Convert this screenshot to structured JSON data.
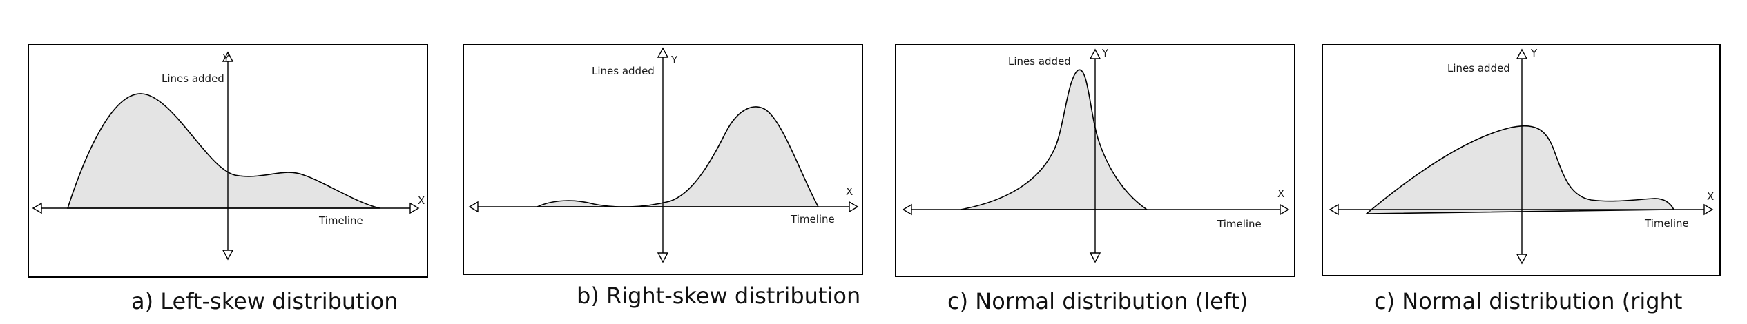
{
  "panels": [
    {
      "id": "a",
      "ylabel": "Lines added",
      "y_axis_letter": "Y",
      "xlabel": "Timeline",
      "x_axis_letter": "X",
      "shape": "left-skew",
      "caption": "a) Left-skew distribution"
    },
    {
      "id": "b",
      "ylabel": "Lines added",
      "y_axis_letter": "Y",
      "xlabel": "Timeline",
      "x_axis_letter": "X",
      "shape": "right-skew",
      "caption": "b) Right-skew distribution"
    },
    {
      "id": "c",
      "ylabel": "Lines added",
      "y_axis_letter": "Y",
      "xlabel": "Timeline",
      "x_axis_letter": "X",
      "shape": "normal-left",
      "caption": "c) Normal distribution (left)"
    },
    {
      "id": "d",
      "ylabel": "Lines added",
      "y_axis_letter": "Y",
      "xlabel": "Timeline",
      "x_axis_letter": "X",
      "shape": "normal-right",
      "caption": "c) Normal distribution (right"
    }
  ],
  "colors": {
    "fill": "#e4e4e4",
    "stroke": "#000000",
    "background": "#ffffff"
  }
}
